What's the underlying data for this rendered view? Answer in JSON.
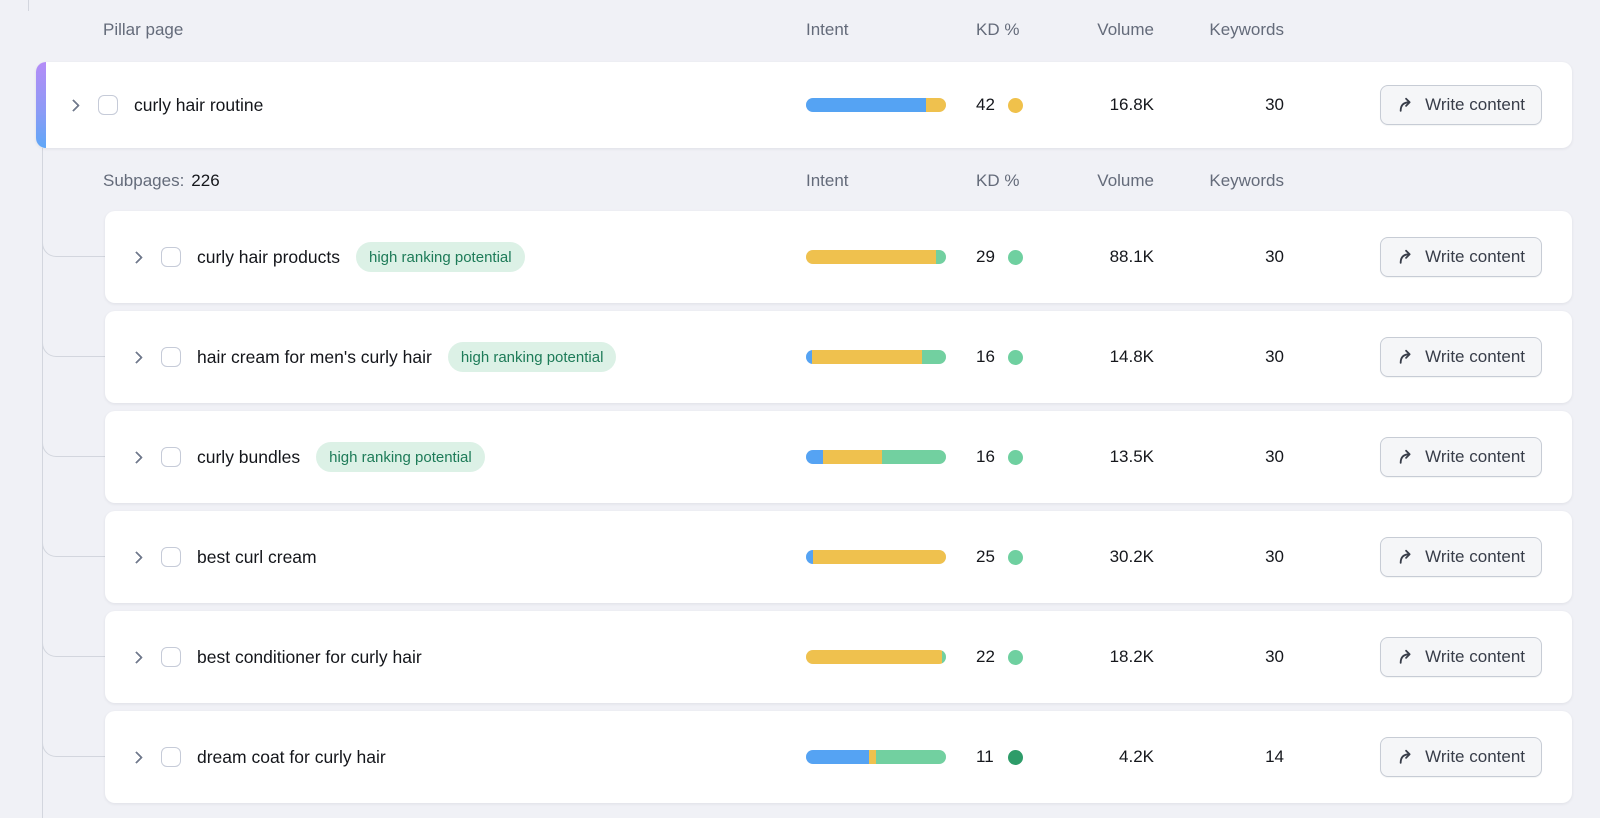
{
  "colors": {
    "intent": {
      "blue": "#55a3f3",
      "yellow": "#efc14e",
      "green": "#72d0a0"
    },
    "kd_levels": {
      "possible": "#f0c14b",
      "easy": "#6fd0a0",
      "very_easy": "#2e9c69"
    },
    "badge_bg": "#dcf1e6",
    "badge_text": "#1d7b58",
    "pillar_accent_top": "#b48cf7",
    "pillar_accent_bottom": "#5fa7f7"
  },
  "header": {
    "pillar_label": "Pillar page",
    "columns": [
      "Intent",
      "KD %",
      "Volume",
      "Keywords"
    ]
  },
  "subpages_header": {
    "label": "Subpages:",
    "count": "226"
  },
  "labels": {
    "write_content": "Write content",
    "high_ranking": "high ranking potential"
  },
  "pillar_row": {
    "label": "curly hair routine",
    "intent": [
      {
        "color": "blue",
        "pct": 86
      },
      {
        "color": "yellow",
        "pct": 14
      }
    ],
    "kd": {
      "value": "42",
      "level": "possible"
    },
    "volume": "16.8K",
    "keywords": "30"
  },
  "rows": [
    {
      "label": "curly hair products",
      "badge": true,
      "intent": [
        {
          "color": "yellow",
          "pct": 93
        },
        {
          "color": "green",
          "pct": 7
        }
      ],
      "kd": {
        "value": "29",
        "level": "easy"
      },
      "volume": "88.1K",
      "keywords": "30"
    },
    {
      "label": "hair cream for men's curly hair",
      "badge": true,
      "intent": [
        {
          "color": "blue",
          "pct": 4
        },
        {
          "color": "yellow",
          "pct": 79
        },
        {
          "color": "green",
          "pct": 17
        }
      ],
      "kd": {
        "value": "16",
        "level": "easy"
      },
      "volume": "14.8K",
      "keywords": "30"
    },
    {
      "label": "curly bundles",
      "badge": true,
      "intent": [
        {
          "color": "blue",
          "pct": 12
        },
        {
          "color": "yellow",
          "pct": 42
        },
        {
          "color": "green",
          "pct": 46
        }
      ],
      "kd": {
        "value": "16",
        "level": "easy"
      },
      "volume": "13.5K",
      "keywords": "30"
    },
    {
      "label": "best curl cream",
      "badge": false,
      "intent": [
        {
          "color": "blue",
          "pct": 5
        },
        {
          "color": "yellow",
          "pct": 95
        }
      ],
      "kd": {
        "value": "25",
        "level": "easy"
      },
      "volume": "30.2K",
      "keywords": "30"
    },
    {
      "label": "best conditioner for curly hair",
      "badge": false,
      "intent": [
        {
          "color": "yellow",
          "pct": 97
        },
        {
          "color": "green",
          "pct": 3
        }
      ],
      "kd": {
        "value": "22",
        "level": "easy"
      },
      "volume": "18.2K",
      "keywords": "30"
    },
    {
      "label": "dream coat for curly hair",
      "badge": false,
      "intent": [
        {
          "color": "blue",
          "pct": 45
        },
        {
          "color": "yellow",
          "pct": 5
        },
        {
          "color": "green",
          "pct": 50
        }
      ],
      "kd": {
        "value": "11",
        "level": "very_easy"
      },
      "volume": "4.2K",
      "keywords": "14"
    }
  ]
}
